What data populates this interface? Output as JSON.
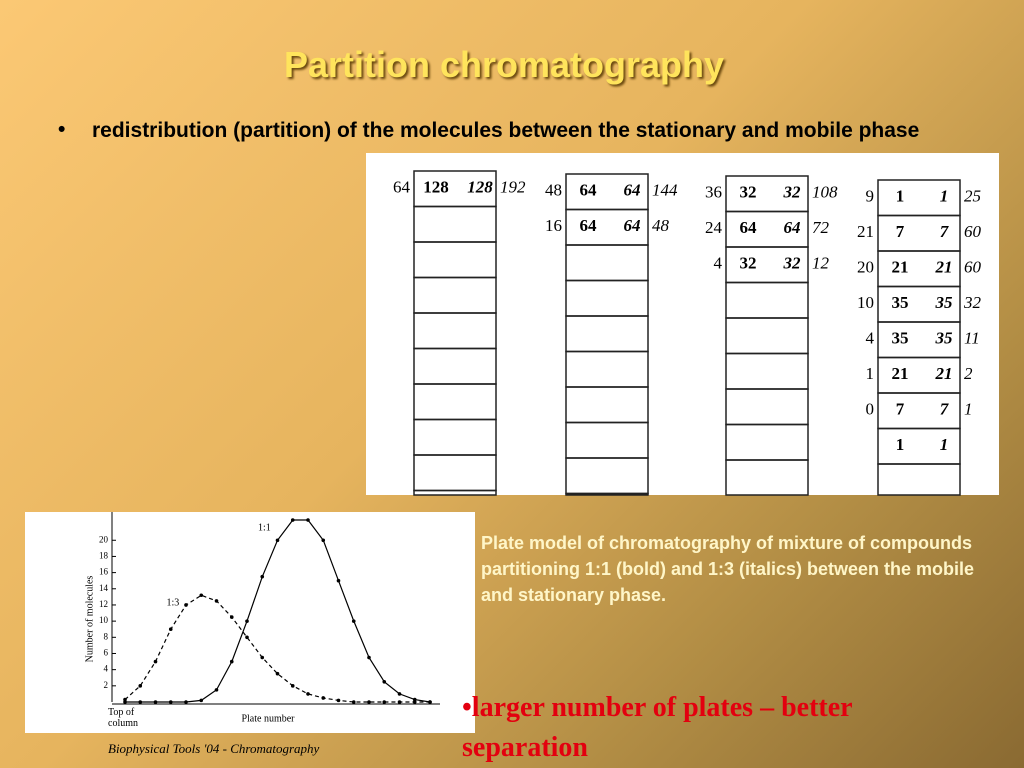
{
  "slide": {
    "title": "Partition chromatography",
    "bullet": "•",
    "bullet_text": "redistribution (partition) of the molecules between the stationary and mobile phase",
    "plates": [
      {
        "rows": [
          [
            64,
            128,
            128,
            192
          ]
        ]
      },
      {
        "rows": [
          [
            48,
            64,
            64,
            144
          ],
          [
            16,
            64,
            64,
            48
          ]
        ]
      },
      {
        "rows": [
          [
            36,
            32,
            32,
            108
          ],
          [
            24,
            64,
            64,
            72
          ],
          [
            4,
            32,
            32,
            12
          ]
        ]
      },
      {
        "rows": [
          [
            9,
            1,
            1,
            25
          ],
          [
            21,
            7,
            7,
            60
          ],
          [
            20,
            21,
            21,
            60
          ],
          [
            10,
            35,
            35,
            32
          ],
          [
            4,
            35,
            35,
            11
          ],
          [
            1,
            21,
            21,
            2
          ],
          [
            0,
            7,
            7,
            1
          ],
          [
            null,
            1,
            1,
            null
          ]
        ]
      }
    ],
    "plot": {
      "y_label": "Number of molecules",
      "x_label": "Plate number",
      "x_origin_label": "Top of column",
      "ylim": [
        0,
        23
      ],
      "yticks": [
        2,
        4,
        6,
        8,
        10,
        12,
        14,
        16,
        18,
        20
      ],
      "series": [
        {
          "name": "1:1",
          "dash": false,
          "values": [
            0,
            0,
            0,
            0,
            0,
            0.2,
            1.5,
            5,
            10,
            15.5,
            20,
            22.5,
            22.5,
            20,
            15,
            10,
            5.5,
            2.5,
            1,
            0.3,
            0
          ]
        },
        {
          "name": "1:3",
          "dash": true,
          "values": [
            0.3,
            2,
            5,
            9,
            12,
            13.2,
            12.5,
            10.5,
            8,
            5.5,
            3.5,
            2,
            1,
            0.5,
            0.2,
            0,
            0,
            0,
            0,
            0,
            0
          ]
        }
      ]
    },
    "caption": "Plate model of chromatography of mixture of compounds partitioning 1:1 (bold) and 1:3 (italics) between the mobile and stationary phase.",
    "conclusion": "•larger number of plates – better separation",
    "footer": "Biophysical Tools '04 - Chromatography"
  }
}
